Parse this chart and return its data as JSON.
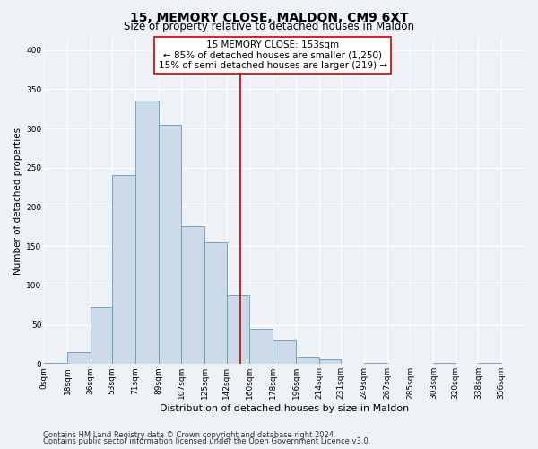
{
  "title": "15, MEMORY CLOSE, MALDON, CM9 6XT",
  "subtitle": "Size of property relative to detached houses in Maldon",
  "xlabel": "Distribution of detached houses by size in Maldon",
  "ylabel": "Number of detached properties",
  "bar_color": "#ccd9e8",
  "bar_edge_color": "#6699bb",
  "bin_labels": [
    "0sqm",
    "18sqm",
    "36sqm",
    "53sqm",
    "71sqm",
    "89sqm",
    "107sqm",
    "125sqm",
    "142sqm",
    "160sqm",
    "178sqm",
    "196sqm",
    "214sqm",
    "231sqm",
    "249sqm",
    "267sqm",
    "285sqm",
    "303sqm",
    "320sqm",
    "338sqm",
    "356sqm"
  ],
  "bar_heights": [
    2,
    15,
    72,
    240,
    335,
    305,
    175,
    155,
    87,
    45,
    30,
    8,
    6,
    0,
    2,
    0,
    0,
    2,
    0,
    2
  ],
  "bin_edges": [
    0,
    18,
    36,
    53,
    71,
    89,
    107,
    125,
    142,
    160,
    178,
    196,
    214,
    231,
    249,
    267,
    285,
    303,
    320,
    338,
    356
  ],
  "ylim": [
    0,
    415
  ],
  "yticks": [
    0,
    50,
    100,
    150,
    200,
    250,
    300,
    350,
    400
  ],
  "vline_x": 153,
  "vline_color": "#cc0000",
  "annotation_title": "15 MEMORY CLOSE: 153sqm",
  "annotation_line1": "← 85% of detached houses are smaller (1,250)",
  "annotation_line2": "15% of semi-detached houses are larger (219) →",
  "annotation_box_color": "#ffffff",
  "annotation_box_edge": "#cc0000",
  "footer1": "Contains HM Land Registry data © Crown copyright and database right 2024.",
  "footer2": "Contains public sector information licensed under the Open Government Licence v3.0.",
  "bg_color": "#eef2f7",
  "grid_color": "#ffffff",
  "title_fontsize": 10,
  "subtitle_fontsize": 8.5,
  "xlabel_fontsize": 8,
  "ylabel_fontsize": 7.5,
  "tick_fontsize": 6.5,
  "annotation_fontsize": 7.5,
  "footer_fontsize": 6
}
